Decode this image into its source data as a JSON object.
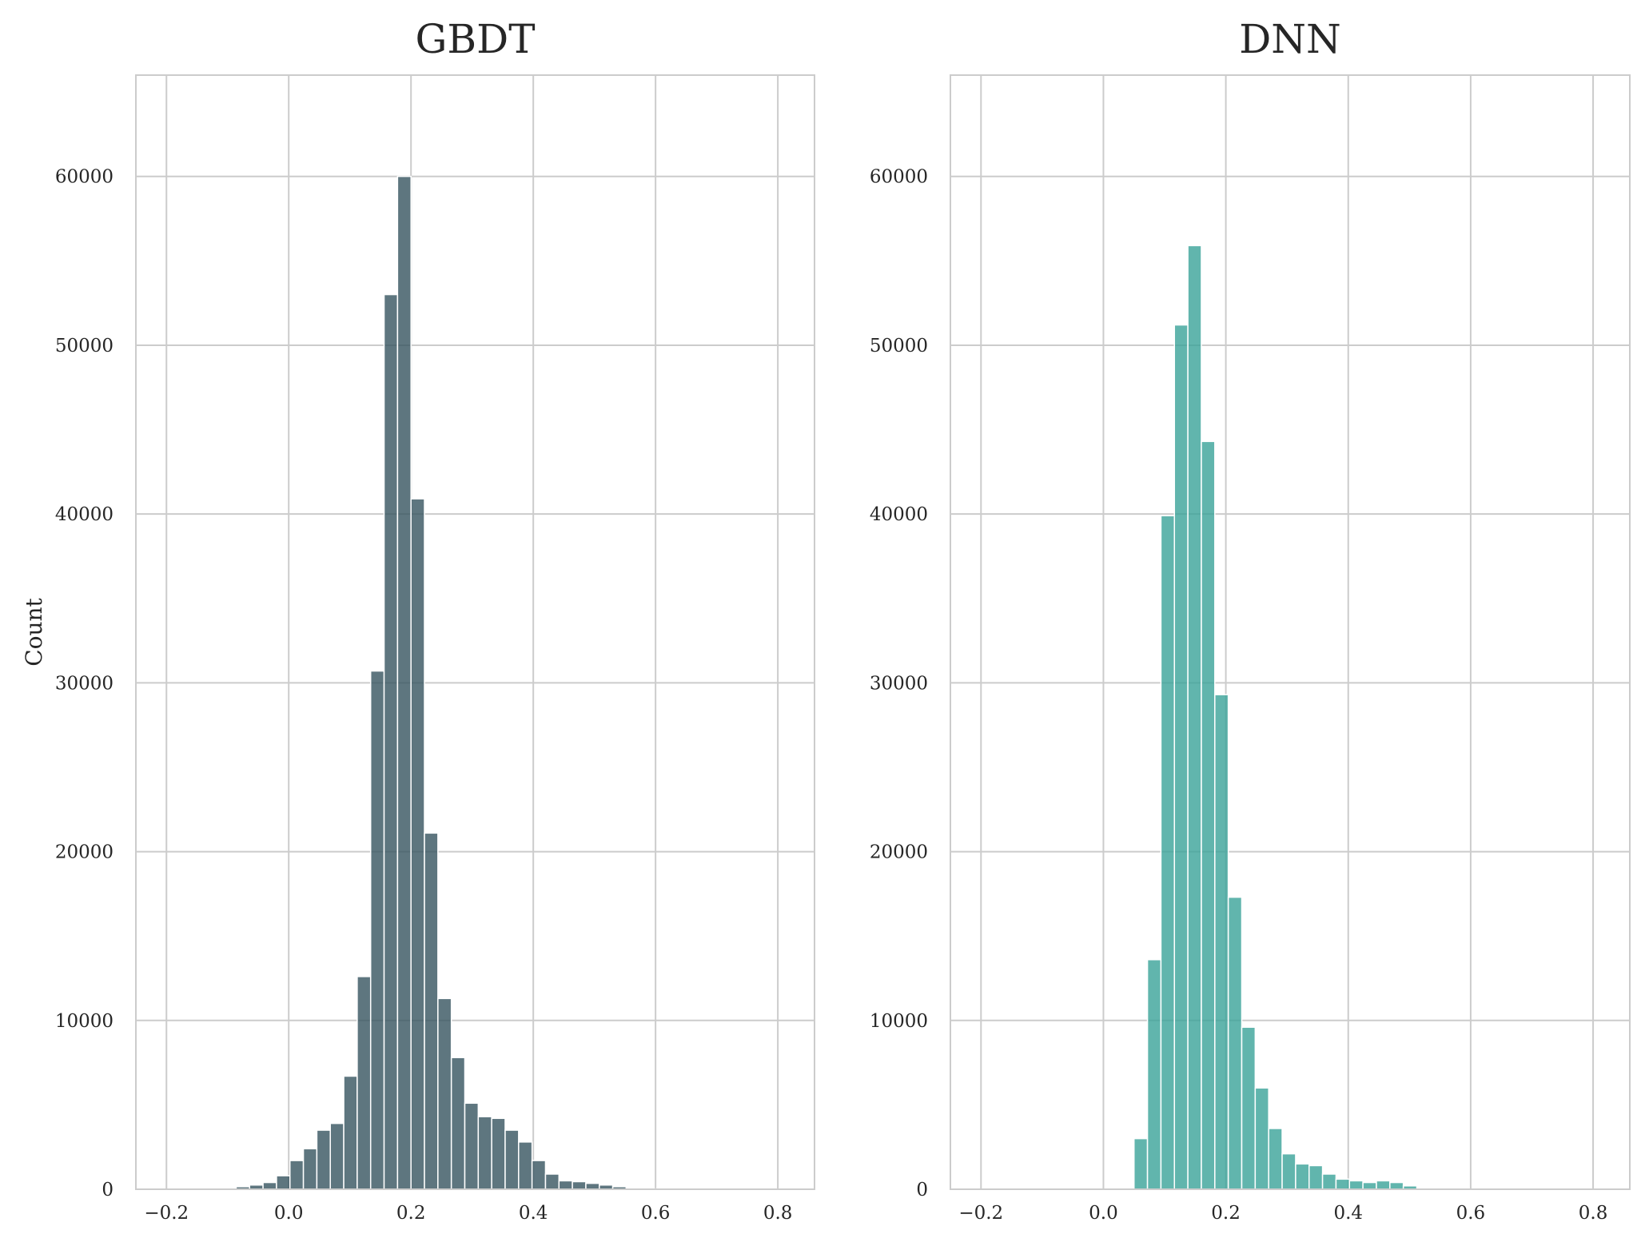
{
  "chart_data": [
    {
      "type": "bar",
      "title": "GBDT",
      "xlabel": "",
      "ylabel": "Count",
      "xlim": [
        -0.25,
        0.86
      ],
      "ylim": [
        0,
        66000
      ],
      "xticks": [
        -0.2,
        0.0,
        0.2,
        0.4,
        0.6,
        0.8
      ],
      "xtick_labels": [
        "−0.2",
        "0.0",
        "0.2",
        "0.4",
        "0.6",
        "0.8"
      ],
      "yticks": [
        0,
        10000,
        20000,
        30000,
        40000,
        50000,
        60000
      ],
      "ytick_labels": [
        "0",
        "10000",
        "20000",
        "30000",
        "40000",
        "50000",
        "60000"
      ],
      "grid": true,
      "color": "#36545f",
      "bin_start": -0.13,
      "bin_width": 0.022,
      "counts": [
        50,
        80,
        150,
        250,
        400,
        800,
        1700,
        2400,
        3500,
        3900,
        6700,
        12600,
        30700,
        53000,
        60000,
        40900,
        21100,
        11300,
        7800,
        5100,
        4300,
        4200,
        3500,
        2800,
        1700,
        900,
        500,
        450,
        350,
        250,
        150,
        80,
        40,
        20,
        10
      ]
    },
    {
      "type": "bar",
      "title": "DNN",
      "xlabel": "",
      "ylabel": "",
      "xlim": [
        -0.25,
        0.86
      ],
      "ylim": [
        0,
        66000
      ],
      "xticks": [
        -0.2,
        0.0,
        0.2,
        0.4,
        0.6,
        0.8
      ],
      "xtick_labels": [
        "−0.2",
        "0.0",
        "0.2",
        "0.4",
        "0.6",
        "0.8"
      ],
      "yticks": [
        0,
        10000,
        20000,
        30000,
        40000,
        50000,
        60000
      ],
      "ytick_labels": [
        "0",
        "10000",
        "20000",
        "30000",
        "40000",
        "50000",
        "60000"
      ],
      "grid": true,
      "color": "#3aa299",
      "bin_start": 0.05,
      "bin_width": 0.022,
      "counts": [
        3000,
        13600,
        39900,
        51200,
        55900,
        44300,
        29300,
        17300,
        9600,
        6000,
        3600,
        2100,
        1500,
        1400,
        900,
        600,
        500,
        400,
        500,
        400,
        200
      ]
    }
  ]
}
